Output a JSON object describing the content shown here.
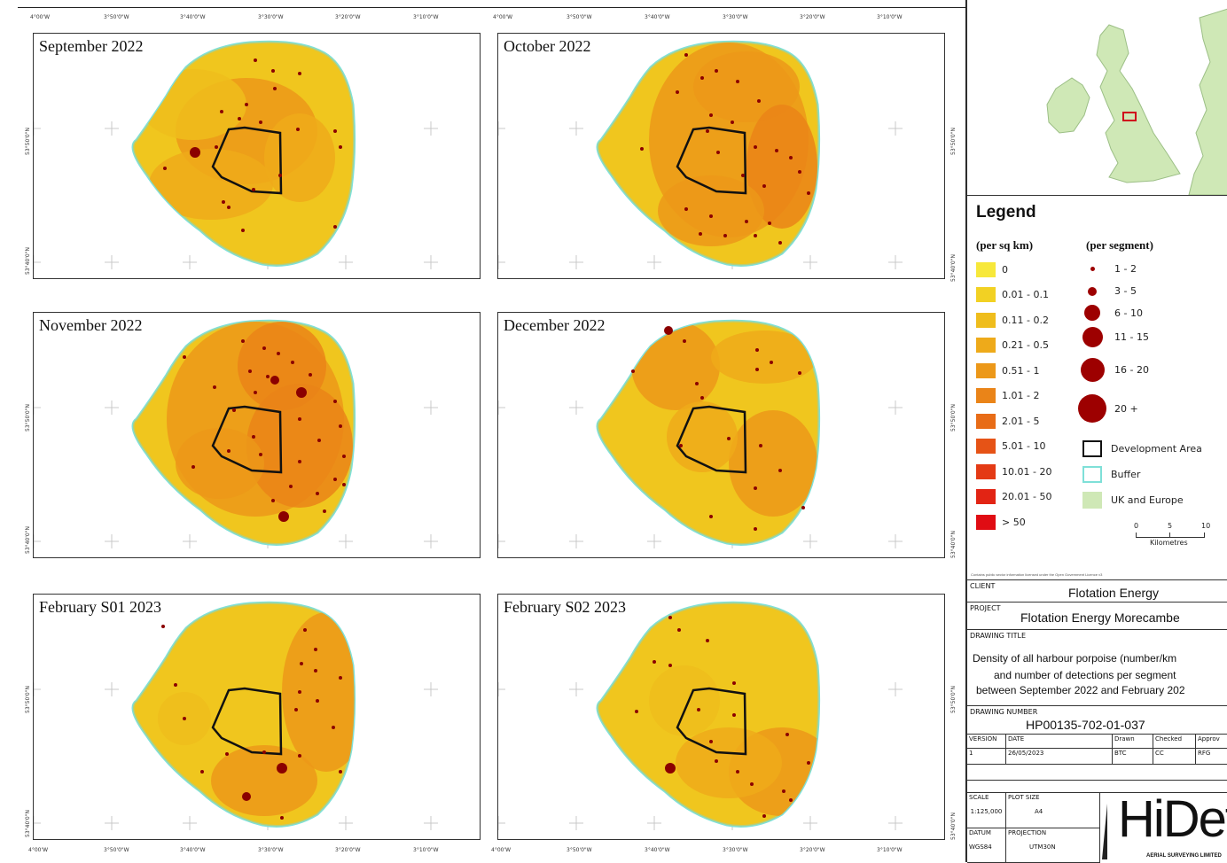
{
  "panels": [
    {
      "title": "September 2022"
    },
    {
      "title": "October 2022"
    },
    {
      "title": "November 2022"
    },
    {
      "title": "December 2022"
    },
    {
      "title": "February S01 2023"
    },
    {
      "title": "February S02 2023"
    }
  ],
  "axes": {
    "top_left": [
      "4°00'W",
      "3°50'0\"W",
      "3°40'0\"W",
      "3°30'0\"W",
      "3°20'0\"W",
      "3°10'0\"W"
    ],
    "top_right": [
      "4°00'W",
      "3°50'0\"W",
      "3°40'0\"W",
      "3°30'0\"W",
      "3°20'0\"W",
      "3°10'0\"W"
    ],
    "bottom_left": [
      "4°00'W",
      "3°50'0\"W",
      "3°40'0\"W",
      "3°30'0\"W",
      "3°20'0\"W",
      "3°10'0\"W"
    ],
    "bottom_right": [
      "4°00'W",
      "3°50'0\"W",
      "3°40'0\"W",
      "3°30'0\"W",
      "3°20'0\"W",
      "3°10'0\"W"
    ],
    "lat": [
      "53°50'0\"N",
      "53°40'0\"N"
    ]
  },
  "legend": {
    "title": "Legend",
    "density_header": "(per sq km)",
    "segment_header": "(per segment)",
    "density_classes": [
      {
        "label": "0",
        "color": "#f7e83a"
      },
      {
        "label": "0.01 - 0.1",
        "color": "#f2d123"
      },
      {
        "label": "0.11 - 0.2",
        "color": "#efbd1c"
      },
      {
        "label": "0.21 - 0.5",
        "color": "#eeaa1a"
      },
      {
        "label": "0.51 - 1",
        "color": "#ec9819"
      },
      {
        "label": "1.01 - 2",
        "color": "#ea8418"
      },
      {
        "label": "2.01 - 5",
        "color": "#e86c17"
      },
      {
        "label": "5.01 - 10",
        "color": "#e65316"
      },
      {
        "label": "10.01 - 20",
        "color": "#e43a15"
      },
      {
        "label": "20.01 - 50",
        "color": "#e22414"
      },
      {
        "label": "> 50",
        "color": "#e00c13"
      }
    ],
    "segment_classes": [
      {
        "label": "1 - 2"
      },
      {
        "label": "3 - 5"
      },
      {
        "label": "6 - 10"
      },
      {
        "label": "11 - 15"
      },
      {
        "label": "16 - 20"
      },
      {
        "label": "20 +"
      }
    ],
    "polygons": [
      {
        "label": "Development Area"
      },
      {
        "label": "Buffer"
      },
      {
        "label": "UK and Europe"
      }
    ],
    "scale": {
      "ticks": [
        "0",
        "5",
        "10"
      ],
      "unit": "Kilometres"
    },
    "notice": "Contains public sector information licensed under the Open Government Licence v3"
  },
  "title_block": {
    "client_label": "CLIENT",
    "client": "Flotation Energy",
    "project_label": "PROJECT",
    "project": "Flotation Energy Morecambe",
    "drawing_title_label": "DRAWING TITLE",
    "drawing_title_1": "Density of all harbour porpoise (number/km",
    "drawing_title_2": "and number of detections per segment",
    "drawing_title_3": "between September 2022 and February 202",
    "drawing_number_label": "DRAWING NUMBER",
    "drawing_number": "HP00135-702-01-037",
    "version_label": "VERSION",
    "date_label": "DATE",
    "drawn_label": "Drawn",
    "checked_label": "Checked",
    "approved_label": "Approv",
    "version": "1",
    "date": "26/05/2023",
    "drawn": "BTC",
    "checked": "CC",
    "approved": "RFG",
    "scale_label": "SCALE",
    "scale": "1:125,000",
    "plot_size_label": "PLOT SIZE",
    "plot_size": "A4",
    "datum_label": "DATUM",
    "datum": "WGS84",
    "projection_label": "PROJECTION",
    "projection": "UTM30N",
    "logo": "HiDef",
    "logo_sub": "AERIAL SURVEYING LIMITED"
  }
}
